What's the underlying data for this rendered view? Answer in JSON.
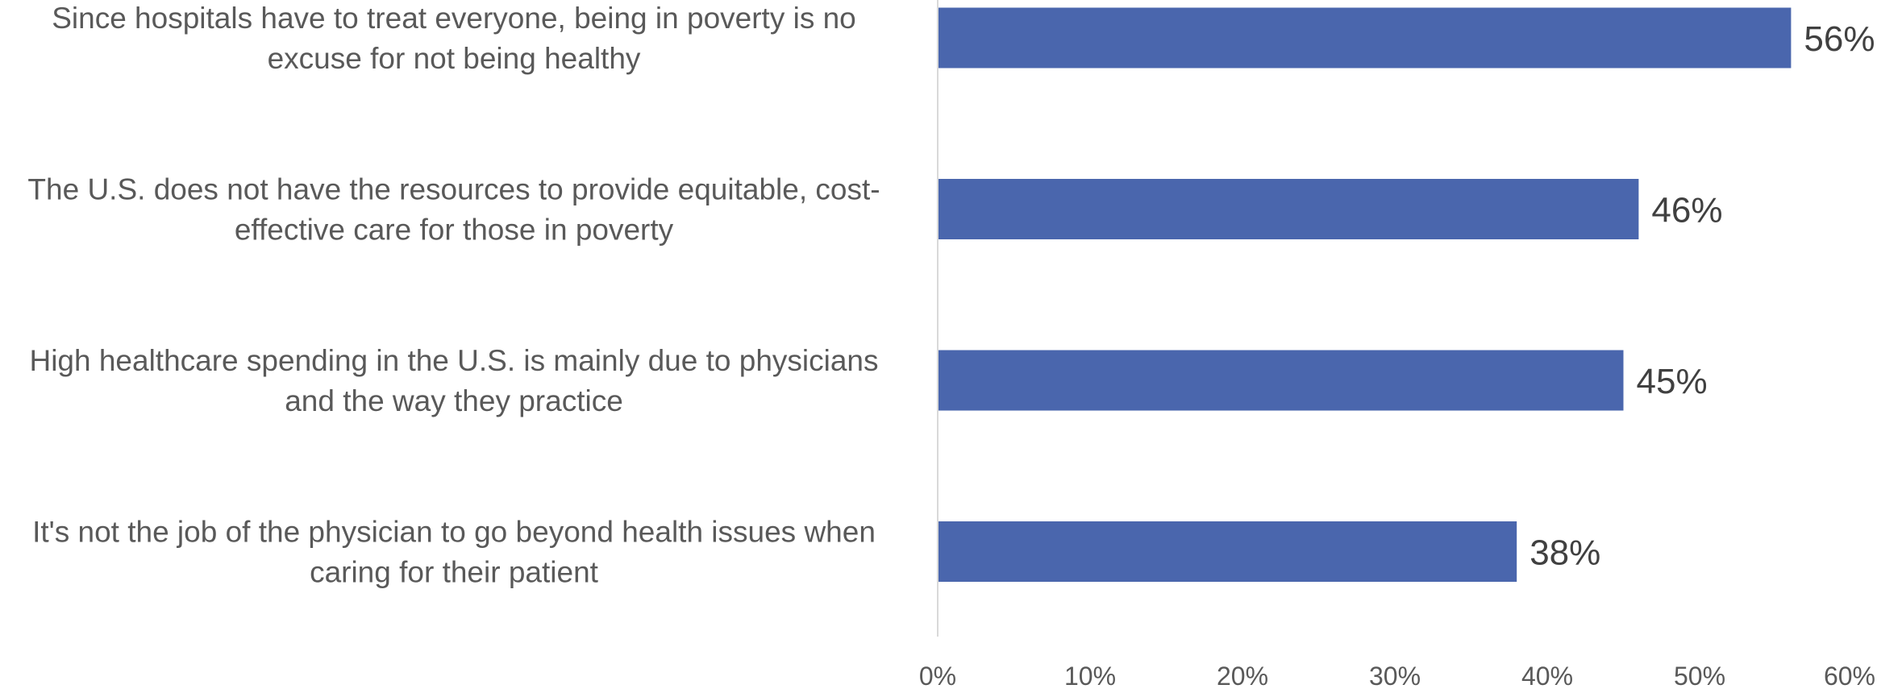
{
  "chart_data": {
    "type": "bar",
    "orientation": "horizontal",
    "title": "",
    "xlabel": "",
    "ylabel": "",
    "categories": [
      [
        "Since hospitals have to treat everyone, being in poverty is no",
        "excuse for not being healthy"
      ],
      [
        "The U.S. does not have the resources to provide equitable, cost-",
        "effective care for those in poverty"
      ],
      [
        "High healthcare spending in the U.S. is mainly due to physicians",
        "and the way they practice"
      ],
      [
        "It's not the job of the physician to go beyond health issues when",
        "caring for their patient"
      ]
    ],
    "values": [
      56,
      46,
      45,
      38
    ],
    "value_labels": [
      "56%",
      "46%",
      "45%",
      "38%"
    ],
    "xlim": [
      0,
      60
    ],
    "ticks": [
      0,
      10,
      20,
      30,
      40,
      50,
      60
    ],
    "tick_labels": [
      "0%",
      "10%",
      "20%",
      "30%",
      "40%",
      "50%",
      "60%"
    ],
    "bar_color": "#4a66ad",
    "axis_color": "#d9d9d9",
    "grid": false,
    "legend": "none"
  }
}
